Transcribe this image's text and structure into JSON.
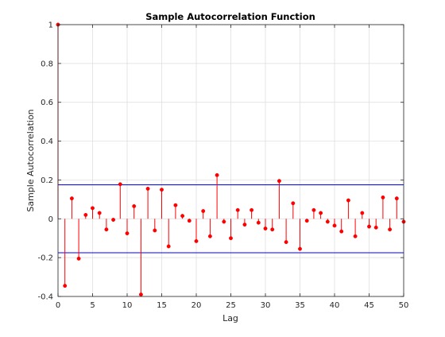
{
  "chart_data": {
    "type": "stem",
    "title": "Sample Autocorrelation Function",
    "xlabel": "Lag",
    "ylabel": "Sample Autocorrelation",
    "xlim": [
      0,
      50
    ],
    "ylim": [
      -0.4,
      1
    ],
    "xticks": [
      0,
      5,
      10,
      15,
      20,
      25,
      30,
      35,
      40,
      45,
      50
    ],
    "xtick_labels": [
      "0",
      "5",
      "10",
      "15",
      "20",
      "25",
      "30",
      "35",
      "40",
      "45",
      "50"
    ],
    "yticks": [
      -0.4,
      -0.2,
      0,
      0.2,
      0.4,
      0.6,
      0.8,
      1
    ],
    "ytick_labels": [
      "-0.4",
      "-0.2",
      "0",
      "0.2",
      "0.4",
      "0.6",
      "0.8",
      "1"
    ],
    "grid": true,
    "confidence_bounds": [
      0.175,
      -0.175
    ],
    "series": [
      {
        "x": [
          0,
          1,
          2,
          3,
          4,
          5,
          6,
          7,
          8,
          9,
          10,
          11,
          12,
          13,
          14,
          15,
          16,
          17,
          18,
          19,
          20,
          21,
          22,
          23,
          24,
          25,
          26,
          27,
          28,
          29,
          30,
          31,
          32,
          33,
          34,
          35,
          36,
          37,
          38,
          39,
          40,
          41,
          42,
          43,
          44,
          45,
          46,
          47,
          48,
          49,
          50
        ],
        "values": [
          1.0,
          -0.345,
          0.105,
          -0.205,
          0.02,
          0.055,
          0.03,
          -0.055,
          -0.005,
          0.178,
          -0.075,
          0.065,
          -0.39,
          0.155,
          -0.06,
          0.15,
          -0.142,
          0.07,
          0.015,
          -0.01,
          -0.115,
          0.04,
          -0.09,
          0.225,
          -0.015,
          -0.1,
          0.045,
          -0.03,
          0.045,
          -0.02,
          -0.05,
          -0.055,
          0.195,
          -0.12,
          0.08,
          -0.155,
          -0.01,
          0.045,
          0.03,
          -0.015,
          -0.035,
          -0.065,
          0.095,
          -0.09,
          0.03,
          -0.04,
          -0.045,
          0.11,
          -0.055,
          0.105,
          -0.015
        ]
      }
    ],
    "colors": {
      "stems": "#ff0000",
      "bounds": "#0000ff",
      "grid": "#dcdcdc",
      "axes": "#262626"
    }
  }
}
